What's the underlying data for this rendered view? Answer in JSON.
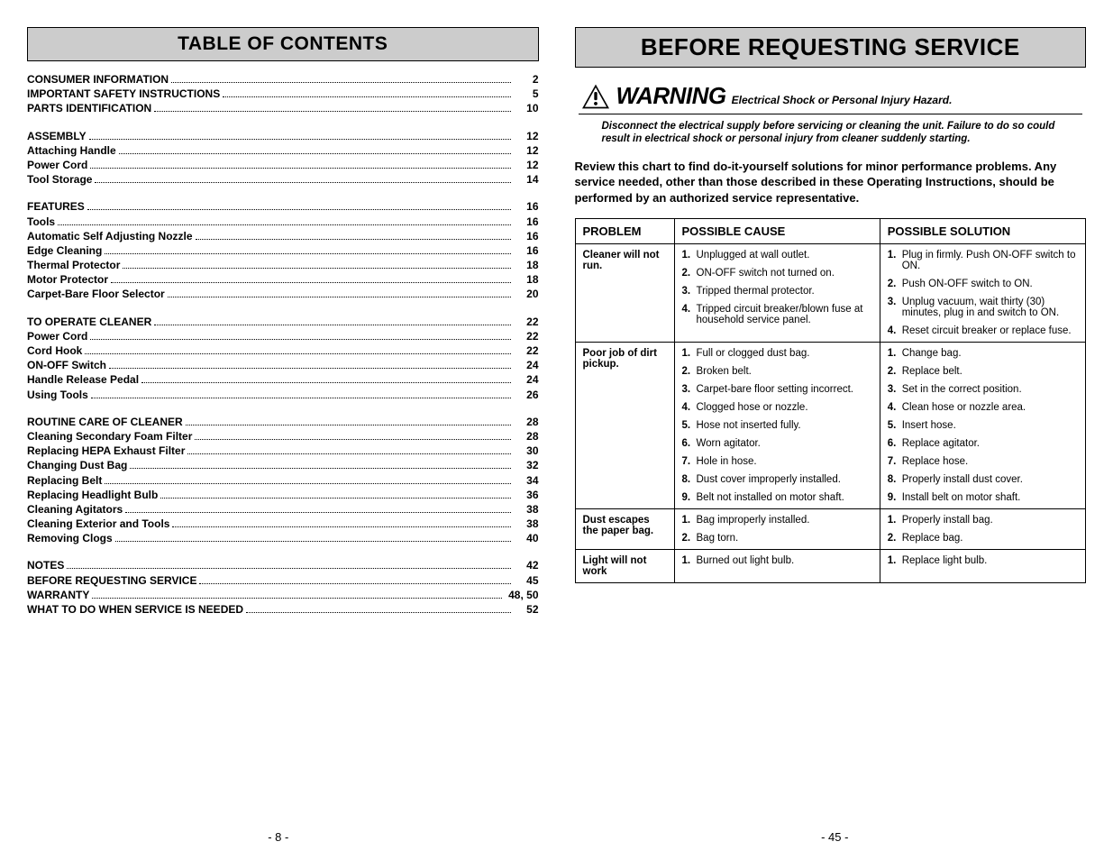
{
  "left": {
    "header": "TABLE OF CONTENTS",
    "page_number": "- 8 -",
    "groups": [
      [
        {
          "label": "CONSUMER INFORMATION",
          "page": "2"
        },
        {
          "label": "IMPORTANT SAFETY INSTRUCTIONS",
          "page": "5"
        },
        {
          "label": "PARTS IDENTIFICATION",
          "page": "10"
        }
      ],
      [
        {
          "label": "ASSEMBLY",
          "page": "12"
        },
        {
          "label": "Attaching Handle",
          "page": "12"
        },
        {
          "label": "Power Cord",
          "page": "12"
        },
        {
          "label": "Tool Storage",
          "page": "14"
        }
      ],
      [
        {
          "label": "FEATURES",
          "page": "16"
        },
        {
          "label": "Tools",
          "page": "16"
        },
        {
          "label": "Automatic Self Adjusting Nozzle",
          "page": "16"
        },
        {
          "label": "Edge Cleaning",
          "page": "16"
        },
        {
          "label": "Thermal Protector",
          "page": "18"
        },
        {
          "label": "Motor Protector",
          "page": "18"
        },
        {
          "label": "Carpet-Bare Floor Selector",
          "page": "20"
        }
      ],
      [
        {
          "label": "TO OPERATE CLEANER",
          "page": "22"
        },
        {
          "label": "Power Cord",
          "page": "22"
        },
        {
          "label": "Cord Hook",
          "page": "22"
        },
        {
          "label": "ON-OFF Switch",
          "page": "24"
        },
        {
          "label": "Handle Release Pedal",
          "page": "24"
        },
        {
          "label": "Using Tools",
          "page": "26"
        }
      ],
      [
        {
          "label": "ROUTINE CARE OF CLEANER",
          "page": "28"
        },
        {
          "label": "Cleaning Secondary Foam Filter",
          "page": "28"
        },
        {
          "label": "Replacing HEPA Exhaust Filter",
          "page": "30"
        },
        {
          "label": "Changing Dust Bag",
          "page": "32"
        },
        {
          "label": "Replacing Belt",
          "page": "34"
        },
        {
          "label": "Replacing Headlight Bulb",
          "page": "36"
        },
        {
          "label": "Cleaning Agitators",
          "page": "38"
        },
        {
          "label": "Cleaning Exterior and Tools",
          "page": "38"
        },
        {
          "label": "Removing Clogs",
          "page": "40"
        }
      ],
      [
        {
          "label": "NOTES",
          "page": "42"
        },
        {
          "label": "BEFORE REQUESTING SERVICE",
          "page": "45"
        },
        {
          "label": "WARRANTY",
          "page": "48, 50"
        },
        {
          "label": "WHAT TO DO WHEN SERVICE IS NEEDED",
          "page": "52"
        }
      ]
    ]
  },
  "right": {
    "header": "BEFORE REQUESTING SERVICE",
    "page_number": "- 45 -",
    "warning": {
      "word": "WARNING",
      "sub": "Electrical Shock or Personal Injury Hazard.",
      "text": "Disconnect the electrical supply before servicing or cleaning the unit.  Failure to do so could result in electrical shock or personal injury from cleaner suddenly starting."
    },
    "review": "Review this chart to find do-it-yourself solutions for minor performance problems. Any service needed, other than those described in these Operating Instructions, should be performed by an authorized service representative.",
    "table": {
      "headers": [
        "PROBLEM",
        "POSSIBLE CAUSE",
        "POSSIBLE SOLUTION"
      ],
      "rows": [
        {
          "problem": "Cleaner will not run.",
          "causes": [
            "Unplugged at wall outlet.",
            "ON-OFF switch not turned on.",
            "Tripped thermal protector.",
            "Tripped circuit breaker/blown fuse at household service panel."
          ],
          "solutions": [
            "Plug in firmly.  Push ON-OFF switch to ON.",
            "Push ON-OFF switch to ON.",
            "Unplug vacuum, wait thirty (30) minutes, plug in and switch to ON.",
            "Reset circuit breaker or replace fuse."
          ]
        },
        {
          "problem": "Poor job of dirt pickup.",
          "causes": [
            "Full or clogged dust bag.",
            "Broken belt.",
            "Carpet-bare floor setting incorrect.",
            "Clogged hose or nozzle.",
            "Hose not inserted fully.",
            "Worn agitator.",
            "Hole in hose.",
            "Dust cover improperly installed.",
            "Belt not installed on motor shaft."
          ],
          "solutions": [
            "Change bag.",
            "Replace belt.",
            "Set in the correct position.",
            "Clean hose or nozzle area.",
            "Insert hose.",
            "Replace agitator.",
            "Replace hose.",
            "Properly install dust cover.",
            "Install belt on motor shaft."
          ]
        },
        {
          "problem": "Dust escapes the paper bag.",
          "causes": [
            "Bag improperly installed.",
            "Bag torn."
          ],
          "solutions": [
            "Properly install bag.",
            "Replace bag."
          ]
        },
        {
          "problem": "Light will not work",
          "causes": [
            "Burned out light bulb."
          ],
          "solutions": [
            "Replace light bulb."
          ]
        }
      ]
    }
  }
}
